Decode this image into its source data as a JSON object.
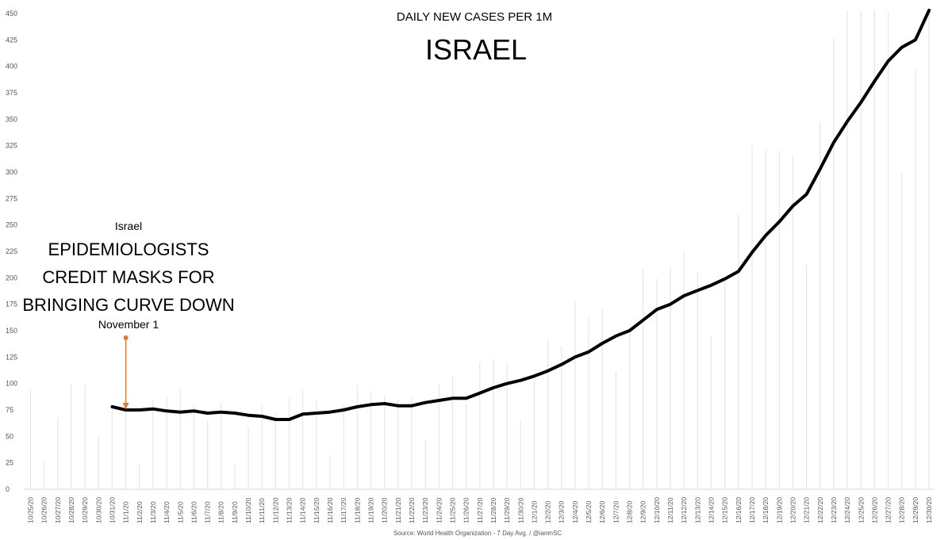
{
  "chart_data": {
    "type": "line",
    "subtitle": "DAILY NEW CASES PER 1M",
    "title": "ISRAEL",
    "source": "Source: World Health Organization - 7 Day Avg. / @ianmSC",
    "ylim": [
      0,
      450
    ],
    "yticks": [
      0,
      25,
      50,
      75,
      100,
      125,
      150,
      175,
      200,
      225,
      250,
      275,
      300,
      325,
      350,
      375,
      400,
      425,
      450
    ],
    "grid": false,
    "categories": [
      "10/25/20",
      "10/26/20",
      "10/27/20",
      "10/28/20",
      "10/29/20",
      "10/30/20",
      "10/31/20",
      "11/1/20",
      "11/2/20",
      "11/3/20",
      "11/4/20",
      "11/5/20",
      "11/6/20",
      "11/7/20",
      "11/8/20",
      "11/9/20",
      "11/10/20",
      "11/11/20",
      "11/12/20",
      "11/13/20",
      "11/14/20",
      "11/15/20",
      "11/16/20",
      "11/17/20",
      "11/18/20",
      "11/19/20",
      "11/20/20",
      "11/21/20",
      "11/22/20",
      "11/23/20",
      "11/24/20",
      "11/25/20",
      "11/26/20",
      "11/27/20",
      "11/28/20",
      "11/29/20",
      "11/30/20",
      "12/1/20",
      "12/2/20",
      "12/3/20",
      "12/4/20",
      "12/5/20",
      "12/6/20",
      "12/7/20",
      "12/8/20",
      "12/9/20",
      "12/10/20",
      "12/11/20",
      "12/12/20",
      "12/13/20",
      "12/14/20",
      "12/15/20",
      "12/16/20",
      "12/17/20",
      "12/18/20",
      "12/19/20",
      "12/20/20",
      "12/21/20",
      "12/22/20",
      "12/23/20",
      "12/24/20",
      "12/25/20",
      "12/26/20",
      "12/27/20",
      "12/28/20",
      "12/29/20",
      "12/30/20"
    ],
    "series": [
      {
        "type": "bar",
        "color": "#e6e6e6",
        "values": [
          95,
          27,
          68,
          99,
          99,
          50,
          80,
          75,
          25,
          85,
          88,
          95,
          80,
          65,
          82,
          23,
          59,
          80,
          72,
          86,
          93,
          85,
          32,
          80,
          98,
          92,
          89,
          85,
          86,
          47,
          100,
          107,
          80,
          120,
          123,
          120,
          65,
          105,
          141,
          135,
          178,
          163,
          171,
          112,
          153,
          209,
          199,
          210,
          225,
          206,
          145,
          200,
          260,
          325,
          321,
          320,
          315,
          212,
          348,
          426,
          453,
          453,
          453,
          451,
          299,
          396,
          453
        ]
      },
      {
        "type": "line",
        "color": "#000000",
        "values": [
          null,
          null,
          null,
          null,
          null,
          null,
          78,
          75,
          75,
          76,
          74,
          73,
          74,
          72,
          73,
          72,
          70,
          69,
          66,
          66,
          71,
          72,
          73,
          75,
          78,
          80,
          81,
          79,
          79,
          82,
          84,
          86,
          86,
          91,
          96,
          100,
          103,
          107,
          112,
          118,
          125,
          130,
          138,
          145,
          150,
          160,
          170,
          175,
          183,
          188,
          193,
          199,
          206,
          224,
          240,
          253,
          268,
          279,
          303,
          328,
          348,
          366,
          386,
          405,
          418,
          425,
          453
        ]
      }
    ],
    "annotation": {
      "label_top": "Israel",
      "headline": [
        "EPIDEMIOLOGISTS",
        "CREDIT MASKS FOR",
        "BRINGING CURVE DOWN"
      ],
      "date_label": "November 1",
      "target_category": "11/1/20",
      "arrow_color": "#e07b2a"
    }
  }
}
